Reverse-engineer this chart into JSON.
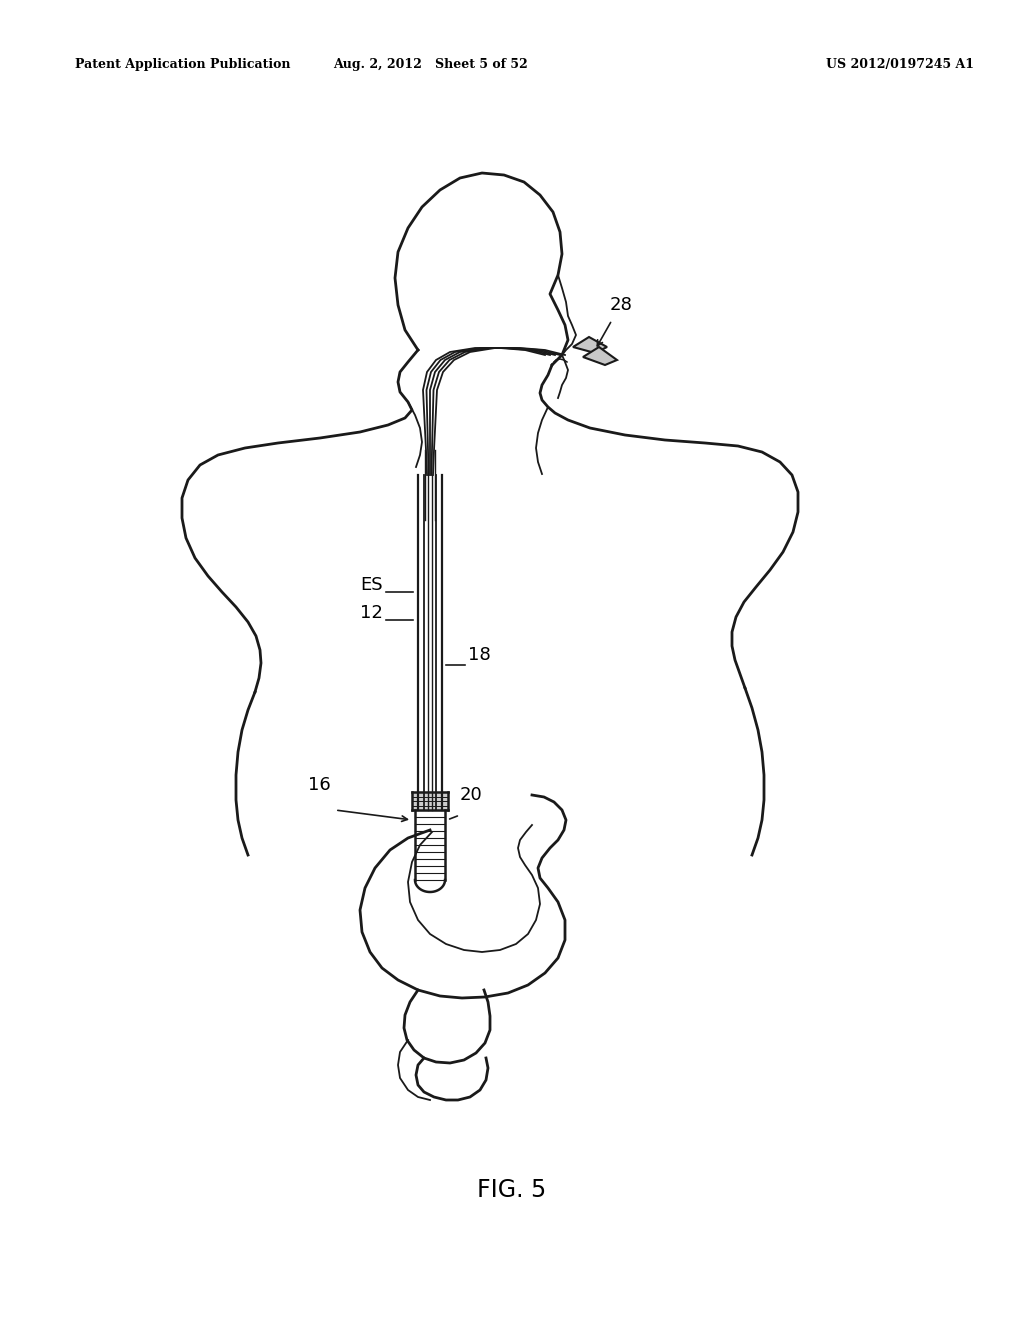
{
  "bg_color": "#ffffff",
  "line_color": "#1a1a1a",
  "header_left": "Patent Application Publication",
  "header_mid": "Aug. 2, 2012   Sheet 5 of 52",
  "header_right": "US 2012/0197245 A1",
  "figure_label": "FIG. 5"
}
